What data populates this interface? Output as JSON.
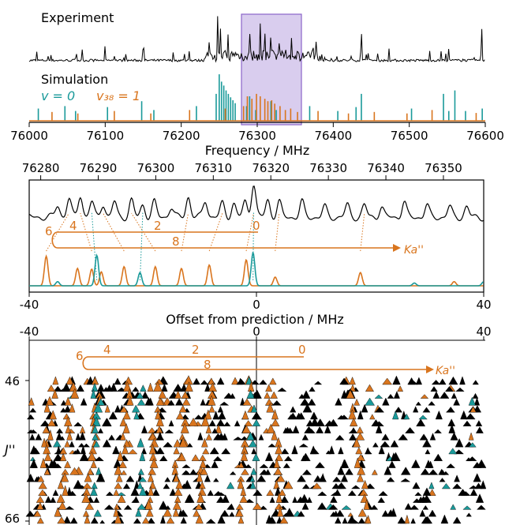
{
  "colors": {
    "black": "#000000",
    "teal": "#1a9a9a",
    "orange": "#d9751e",
    "highlight": "#8a63c9"
  },
  "chart_data": [
    {
      "type": "line",
      "panel": "overview",
      "labels": {
        "experiment": "Experiment",
        "simulation": "Simulation",
        "v0": "v = 0",
        "v38": "v₃₈ = 1"
      },
      "xlabel": "Frequency / MHz",
      "xlim": [
        76000,
        76600
      ],
      "xticks": [
        "76000",
        "76100",
        "76200",
        "76300",
        "76400",
        "76500",
        "76600"
      ],
      "highlight_range": [
        76278,
        76357
      ],
      "series": [
        {
          "name": "v = 0",
          "peaks": [
            [
              76012,
              0.25
            ],
            [
              76047,
              0.3
            ],
            [
              76061,
              0.2
            ],
            [
              76103,
              0.28
            ],
            [
              76148,
              0.4
            ],
            [
              76164,
              0.22
            ],
            [
              76220,
              0.3
            ],
            [
              76246,
              0.55
            ],
            [
              76250,
              0.95
            ],
            [
              76253,
              0.8
            ],
            [
              76256,
              0.72
            ],
            [
              76259,
              0.62
            ],
            [
              76262,
              0.55
            ],
            [
              76265,
              0.48
            ],
            [
              76268,
              0.42
            ],
            [
              76271,
              0.36
            ],
            [
              76286,
              0.3
            ],
            [
              76290,
              0.5
            ],
            [
              76298,
              0.22
            ],
            [
              76318,
              0.4
            ],
            [
              76325,
              0.22
            ],
            [
              76369,
              0.3
            ],
            [
              76406,
              0.2
            ],
            [
              76430,
              0.28
            ],
            [
              76437,
              0.55
            ],
            [
              76503,
              0.25
            ],
            [
              76545,
              0.55
            ],
            [
              76552,
              0.2
            ],
            [
              76560,
              0.62
            ],
            [
              76574,
              0.2
            ],
            [
              76596,
              0.25
            ]
          ]
        },
        {
          "name": "v₃₈ = 1",
          "peaks": [
            [
              76030,
              0.18
            ],
            [
              76064,
              0.15
            ],
            [
              76112,
              0.2
            ],
            [
              76160,
              0.15
            ],
            [
              76211,
              0.22
            ],
            [
              76258,
              0.25
            ],
            [
              76282,
              0.3
            ],
            [
              76287,
              0.5
            ],
            [
              76293,
              0.45
            ],
            [
              76299,
              0.55
            ],
            [
              76304,
              0.5
            ],
            [
              76310,
              0.45
            ],
            [
              76314,
              0.4
            ],
            [
              76319,
              0.42
            ],
            [
              76323,
              0.35
            ],
            [
              76330,
              0.3
            ],
            [
              76337,
              0.22
            ],
            [
              76344,
              0.25
            ],
            [
              76353,
              0.18
            ],
            [
              76380,
              0.2
            ],
            [
              76420,
              0.15
            ],
            [
              76454,
              0.18
            ],
            [
              76497,
              0.15
            ],
            [
              76530,
              0.22
            ],
            [
              76588,
              0.16
            ]
          ]
        }
      ]
    },
    {
      "type": "line",
      "panel": "zoom",
      "top_xlim": [
        76278,
        76357
      ],
      "top_xticks": [
        "76280",
        "76290",
        "76300",
        "76310",
        "76320",
        "76330",
        "76340",
        "76350"
      ],
      "xlabel": "Offset from prediction / MHz",
      "xlim": [
        -40,
        40
      ],
      "xticks": [
        "-40",
        "0",
        "40"
      ],
      "ka_labels": [
        "6",
        "4",
        "2",
        "0",
        "8"
      ],
      "ka_axis_label": "Ka''",
      "experiment_peaks": [
        [
          -35,
          0.35
        ],
        [
          -33,
          0.55
        ],
        [
          -31,
          0.65
        ],
        [
          -29,
          0.45
        ],
        [
          -27,
          0.4
        ],
        [
          -25,
          0.45
        ],
        [
          -22,
          0.5
        ],
        [
          -20,
          0.35
        ],
        [
          -18,
          0.45
        ],
        [
          -15,
          0.3
        ],
        [
          -12,
          0.6
        ],
        [
          -9,
          0.5
        ],
        [
          -6,
          0.4
        ],
        [
          -4,
          0.4
        ],
        [
          -2,
          0.45
        ],
        [
          -0.5,
          1.0
        ],
        [
          2,
          0.5
        ],
        [
          4,
          0.45
        ],
        [
          8,
          0.45
        ],
        [
          12,
          0.3
        ],
        [
          16,
          0.35
        ],
        [
          19,
          0.35
        ],
        [
          22,
          0.3
        ],
        [
          26,
          0.45
        ],
        [
          30,
          0.35
        ],
        [
          34,
          0.3
        ],
        [
          37,
          0.3
        ]
      ],
      "series": [
        {
          "name": "v₃₈ = 1",
          "peaks": [
            [
              -37,
              0.85
            ],
            [
              -31.5,
              0.5
            ],
            [
              -29,
              0.48
            ],
            [
              -27.3,
              0.4
            ],
            [
              -23.3,
              0.55
            ],
            [
              -17.8,
              0.55
            ],
            [
              -13.2,
              0.5
            ],
            [
              -8.3,
              0.6
            ],
            [
              -1.8,
              0.75
            ],
            [
              3.3,
              0.25
            ],
            [
              18.3,
              0.38
            ],
            [
              34.8,
              0.12
            ]
          ]
        },
        {
          "name": "v = 0",
          "peaks": [
            [
              -35,
              0.12
            ],
            [
              -28.1,
              0.88
            ],
            [
              -20.5,
              0.38
            ],
            [
              -0.6,
              0.95
            ],
            [
              27.8,
              0.08
            ],
            [
              40,
              0.12
            ]
          ]
        }
      ]
    },
    {
      "type": "scatter",
      "panel": "loomis-wood",
      "xlim": [
        -40,
        40
      ],
      "xticks": [
        "-40",
        "0",
        "40"
      ],
      "ylabel": "J''",
      "yticks": [
        "46",
        "66"
      ],
      "ylim": [
        46,
        66
      ],
      "ka_labels": [
        "6",
        "4",
        "2",
        "0",
        "8"
      ],
      "ka_axis_label": "Ka''"
    }
  ]
}
